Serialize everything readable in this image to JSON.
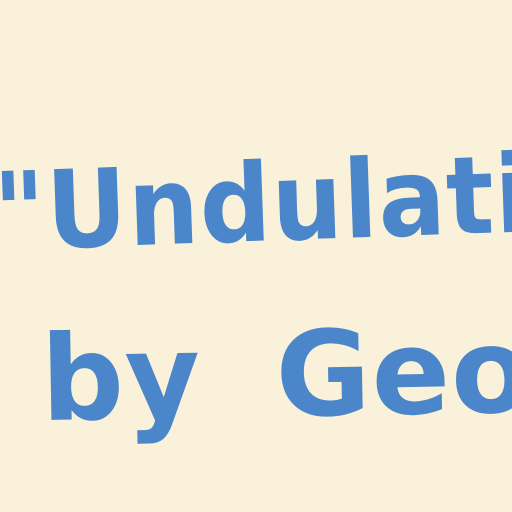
{
  "handwritten_text": {
    "line_1": "\"Undulatin",
    "line_2": "by Geor"
  },
  "colors": {
    "paper": "#f9f1d9",
    "ink": "#4a86c9"
  }
}
